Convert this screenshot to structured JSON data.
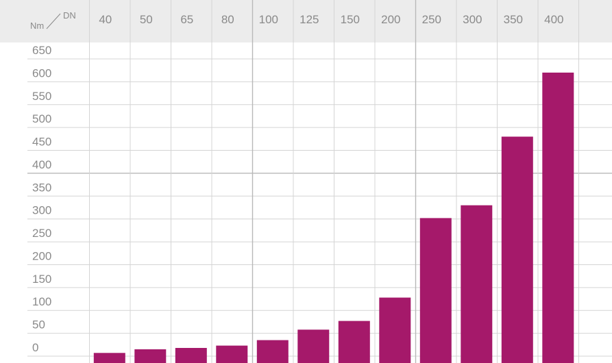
{
  "chart_data": {
    "type": "bar",
    "corner_label": {
      "left": "Nm",
      "right": "DN"
    },
    "categories": [
      "40",
      "50",
      "65",
      "80",
      "100",
      "125",
      "150",
      "200",
      "250",
      "300",
      "350",
      "400"
    ],
    "values": [
      7,
      15,
      18,
      23,
      35,
      58,
      77,
      128,
      302,
      330,
      480,
      620
    ],
    "yticks": [
      "0",
      "50",
      "100",
      "150",
      "200",
      "250",
      "300",
      "350",
      "400",
      "450",
      "500",
      "550",
      "600",
      "650"
    ],
    "ylim": [
      0,
      650
    ],
    "grid": true,
    "colors": {
      "bar": "#a5196a",
      "header_bg": "#ececec",
      "grid": "#d4d4d4",
      "grid_major": "#b8b8b8",
      "text": "#8a8a8a"
    }
  }
}
